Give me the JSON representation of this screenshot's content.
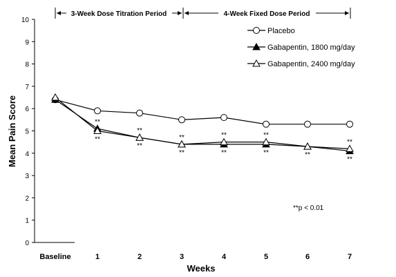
{
  "chart_data": {
    "type": "line",
    "title": "",
    "xlabel": "Weeks",
    "ylabel": "Mean Pain Score",
    "ylim": [
      0,
      10
    ],
    "yticks": [
      0,
      1,
      2,
      3,
      4,
      5,
      6,
      7,
      8,
      9,
      10
    ],
    "categories": [
      "Baseline",
      "1",
      "2",
      "3",
      "4",
      "5",
      "6",
      "7"
    ],
    "series": [
      {
        "name": "Placebo",
        "marker": "open-circle",
        "color": "#000000",
        "values": [
          6.4,
          5.9,
          5.8,
          5.5,
          5.6,
          5.3,
          5.3,
          5.3
        ]
      },
      {
        "name": "Gabapentin, 1800 mg/day",
        "marker": "filled-triangle",
        "color": "#000000",
        "values": [
          6.4,
          5.1,
          4.7,
          4.4,
          4.4,
          4.4,
          4.3,
          4.1
        ]
      },
      {
        "name": "Gabapentin, 2400 mg/day",
        "marker": "open-triangle",
        "color": "#000000",
        "values": [
          6.5,
          5.0,
          4.7,
          4.4,
          4.5,
          4.5,
          4.3,
          4.2
        ]
      }
    ],
    "periods": [
      {
        "label": "3-Week Dose Titration Period",
        "from": "Baseline",
        "to": "3"
      },
      {
        "label": "4-Week Fixed Dose Period",
        "from": "3",
        "to": "7"
      }
    ],
    "significance": {
      "marker": "**",
      "above": [
        "1",
        "2",
        "3",
        "4",
        "5",
        "7"
      ],
      "below": [
        "1",
        "2",
        "3",
        "4",
        "5",
        "6",
        "7"
      ]
    },
    "legend_position": "top-right",
    "note": "**p < 0.01"
  }
}
